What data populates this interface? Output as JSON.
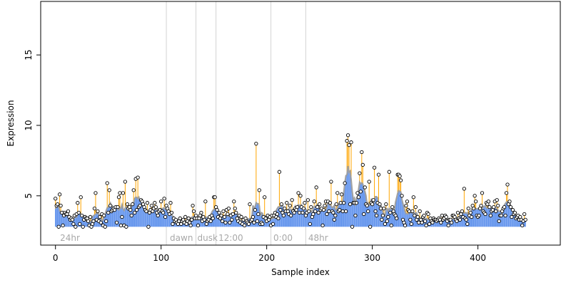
{
  "chart_data": {
    "type": "scatter",
    "title": "",
    "xlabel": "Sample index",
    "ylabel": "Expression",
    "xlim": [
      -14,
      478
    ],
    "ylim": [
      1.5,
      18.8
    ],
    "xticks": [
      0,
      100,
      200,
      300,
      400
    ],
    "yticks": [
      5,
      10,
      15
    ],
    "grid": false,
    "phase_separators": [
      105,
      133,
      152,
      204,
      237
    ],
    "phase_labels": [
      {
        "x": 3,
        "label": "24hr"
      },
      {
        "x": 107,
        "label": "dawn"
      },
      {
        "x": 133,
        "label": "dusk"
      },
      {
        "x": 153,
        "label": "12:00"
      },
      {
        "x": 205,
        "label": "0:00"
      },
      {
        "x": 238,
        "label": "48hr"
      }
    ],
    "colors": {
      "points": "#000000",
      "point_fill": "#ffffff",
      "above_fit": "#ffa500",
      "below_fit": "#6495ed",
      "fit_line": "#a0a0a0",
      "separator": "#d3d3d3",
      "phase_label": "#a8a8a8"
    },
    "series": [
      {
        "name": "",
        "values": [
          4.8,
          4.3,
          4.4,
          2.8,
          5.1,
          4.3,
          3.8,
          2.9,
          3.6,
          3.8,
          3.7,
          3.7,
          3.9,
          3.5,
          3.3,
          3.4,
          3.3,
          3.0,
          3.6,
          2.8,
          3.7,
          4.5,
          3.8,
          3.0,
          4.9,
          3.6,
          2.8,
          3.3,
          3.5,
          3.4,
          3.4,
          3.2,
          2.9,
          3.5,
          2.8,
          3.0,
          3.2,
          4.1,
          5.2,
          3.3,
          3.9,
          3.2,
          3.5,
          3.1,
          3.7,
          2.9,
          3.6,
          2.8,
          3.2,
          5.9,
          3.8,
          5.4,
          4.3,
          3.9,
          4.0,
          4.1,
          4.0,
          4.2,
          3.1,
          4.2,
          4.9,
          5.2,
          2.9,
          3.5,
          5.2,
          2.9,
          6.0,
          2.8,
          4.4,
          4.1,
          4.2,
          4.0,
          3.6,
          4.4,
          5.4,
          3.8,
          6.2,
          4.0,
          6.3,
          4.2,
          4.3,
          4.7,
          4.6,
          4.4,
          4.2,
          4.0,
          3.9,
          4.5,
          2.8,
          3.8,
          4.0,
          4.3,
          3.9,
          4.1,
          4.5,
          4.2,
          3.8,
          3.6,
          3.9,
          4.0,
          4.6,
          3.9,
          3.8,
          4.8,
          3.5,
          4.3,
          4.1,
          3.9,
          3.7,
          4.5,
          3.8,
          3.0,
          3.4,
          3.2,
          3.3,
          3.1,
          3.0,
          3.2,
          3.4,
          3.0,
          3.2,
          3.3,
          3.1,
          3.5,
          3.0,
          3.2,
          3.4,
          3.1,
          2.9,
          3.3,
          4.3,
          3.9,
          3.4,
          3.6,
          3.4,
          2.9,
          3.4,
          3.6,
          3.8,
          3.2,
          3.5,
          3.3,
          4.6,
          3.0,
          3.2,
          3.3,
          3.5,
          3.2,
          3.6,
          3.4,
          4.9,
          4.9,
          4.2,
          4.0,
          3.5,
          3.8,
          3.4,
          3.6,
          3.2,
          3.9,
          3.5,
          3.1,
          4.0,
          3.7,
          4.1,
          3.1,
          3.6,
          3.3,
          3.7,
          4.6,
          4.1,
          3.8,
          3.4,
          3.2,
          3.6,
          3.1,
          3.5,
          3.0,
          3.3,
          2.9,
          3.4,
          3.2,
          3.1,
          3.0,
          4.4,
          3.2,
          3.3,
          3.5,
          3.1,
          4.0,
          8.7,
          3.2,
          3.7,
          5.4,
          3.0,
          3.1,
          3.0,
          3.5,
          4.9,
          3.4,
          3.2,
          3.6,
          3.3,
          3.5,
          2.9,
          3.6,
          3.0,
          3.6,
          3.8,
          3.5,
          3.7,
          3.4,
          6.7,
          4.0,
          4.4,
          3.8,
          3.6,
          4.1,
          3.9,
          4.5,
          3.9,
          3.7,
          4.3,
          3.6,
          4.7,
          3.9,
          3.8,
          4.1,
          4.0,
          4.2,
          5.2,
          3.8,
          5.0,
          4.2,
          3.8,
          4.1,
          4.5,
          3.6,
          3.8,
          4.7,
          3.9,
          3.0,
          4.2,
          3.5,
          3.7,
          4.6,
          3.9,
          5.6,
          4.2,
          3.8,
          4.4,
          4.0,
          4.1,
          2.9,
          4.0,
          4.3,
          4.6,
          3.7,
          4.6,
          3.9,
          4.5,
          6.0,
          3.9,
          3.8,
          3.3,
          3.6,
          4.4,
          5.2,
          3.9,
          4.0,
          4.5,
          5.1,
          3.9,
          4.5,
          5.9,
          3.9,
          8.9,
          9.3,
          8.6,
          4.4,
          8.8,
          2.8,
          4.5,
          4.5,
          3.6,
          4.5,
          5.2,
          4.9,
          6.6,
          5.3,
          8.1,
          7.2,
          3.7,
          5.6,
          4.4,
          4.3,
          3.9,
          6.0,
          2.8,
          4.5,
          4.4,
          4.7,
          7.0,
          3.9,
          3.6,
          4.5,
          6.5,
          4.4,
          4.1,
          3.3,
          3.6,
          4.1,
          3.0,
          4.4,
          3.2,
          3.5,
          6.7,
          3.8,
          2.9,
          4.2,
          3.9,
          3.7,
          3.6,
          3.4,
          6.5,
          6.5,
          6.4,
          6.1,
          5.0,
          3.3,
          3.1,
          2.9,
          4.3,
          4.6,
          4.0,
          3.9,
          3.3,
          3.0,
          3.9,
          4.9,
          3.6,
          4.2,
          3.3,
          3.5,
          3.1,
          3.9,
          3.3,
          3.1,
          3.5,
          3.6,
          3.2,
          2.9,
          3.8,
          3.7,
          3.0,
          3.4,
          3.2,
          3.1,
          3.4,
          3.3,
          3.3,
          3.2,
          3.3,
          3.4,
          3.3,
          3.1,
          3.6,
          3.3,
          3.4,
          3.6,
          3.5,
          3.2,
          2.9,
          3.3,
          3.3,
          3.1,
          3.6,
          3.6,
          3.5,
          3.3,
          3.2,
          3.8,
          3.4,
          3.3,
          3.7,
          3.9,
          3.5,
          5.5,
          3.4,
          3.3,
          3.0,
          4.1,
          3.6,
          3.8,
          3.5,
          4.3,
          4.1,
          5.0,
          4.6,
          3.6,
          3.5,
          3.6,
          4.1,
          4.3,
          5.2,
          3.9,
          3.8,
          3.7,
          4.5,
          4.4,
          4.6,
          4.2,
          3.6,
          3.9,
          4.0,
          4.2,
          4.6,
          3.9,
          4.7,
          4.3,
          3.2,
          3.6,
          3.6,
          3.9,
          4.1,
          4.2,
          3.6,
          5.2,
          5.8,
          4.4,
          4.6,
          4.2,
          3.5,
          4.0,
          3.7,
          3.8,
          3.4,
          3.5,
          3.6,
          3.3,
          3.5,
          3.3,
          2.9,
          3.2,
          3.7,
          3.3
        ]
      }
    ]
  }
}
